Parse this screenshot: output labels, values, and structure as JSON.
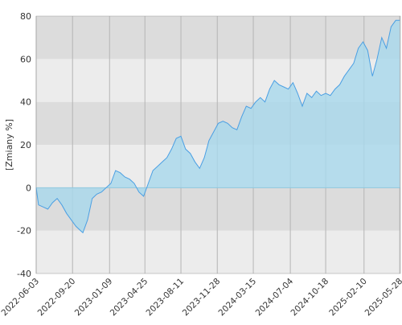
{
  "chart_data": {
    "type": "area",
    "ylabel": "[Zmiany %]",
    "x": [
      "2022-06-03",
      "2022-06-10",
      "2022-06-24",
      "2022-07-08",
      "2022-07-22",
      "2022-08-05",
      "2022-08-19",
      "2022-09-02",
      "2022-09-16",
      "2022-09-30",
      "2022-10-14",
      "2022-10-21",
      "2022-11-04",
      "2022-11-18",
      "2022-12-02",
      "2022-12-16",
      "2022-12-30",
      "2023-01-13",
      "2023-01-27",
      "2023-02-10",
      "2023-02-24",
      "2023-03-10",
      "2023-03-24",
      "2023-04-07",
      "2023-04-21",
      "2023-05-05",
      "2023-05-19",
      "2023-06-02",
      "2023-06-16",
      "2023-06-30",
      "2023-07-14",
      "2023-07-28",
      "2023-08-11",
      "2023-08-25",
      "2023-09-08",
      "2023-09-22",
      "2023-10-06",
      "2023-10-20",
      "2023-11-03",
      "2023-11-17",
      "2023-12-01",
      "2023-12-15",
      "2023-12-29",
      "2024-01-12",
      "2024-01-26",
      "2024-02-09",
      "2024-02-23",
      "2024-03-08",
      "2024-03-22",
      "2024-04-05",
      "2024-04-19",
      "2024-05-03",
      "2024-05-17",
      "2024-05-31",
      "2024-06-14",
      "2024-06-28",
      "2024-07-12",
      "2024-07-26",
      "2024-08-09",
      "2024-08-23",
      "2024-09-06",
      "2024-09-20",
      "2024-10-04",
      "2024-10-18",
      "2024-11-01",
      "2024-11-15",
      "2024-11-29",
      "2024-12-13",
      "2024-12-27",
      "2025-01-10",
      "2025-01-24",
      "2025-02-07",
      "2025-02-21",
      "2025-03-07",
      "2025-03-21",
      "2025-04-04",
      "2025-04-18",
      "2025-05-02",
      "2025-05-16",
      "2025-05-28"
    ],
    "series": [
      {
        "color": "#4a9fe3",
        "fill": "#a8d8ec",
        "values": [
          0,
          -8,
          -9,
          -10,
          -7,
          -5,
          -8,
          -12,
          -15,
          -18,
          -20,
          -21,
          -15,
          -5,
          -3,
          -2,
          0,
          2,
          8,
          7,
          5,
          4,
          2,
          -2,
          -4,
          2,
          8,
          10,
          12,
          14,
          18,
          23,
          24,
          18,
          16,
          12,
          9,
          14,
          22,
          26,
          30,
          31,
          30,
          28,
          27,
          33,
          38,
          37,
          40,
          42,
          40,
          46,
          50,
          48,
          47,
          46,
          49,
          44,
          38,
          44,
          42,
          45,
          43,
          44,
          43,
          46,
          48,
          52,
          55,
          58,
          65,
          68,
          64,
          52,
          60,
          70,
          65,
          75,
          78,
          78
        ]
      }
    ],
    "xlim": [
      "2022-06-03",
      "2025-05-30"
    ],
    "xticks": [
      "2022-06-03",
      "2022-09-20",
      "2023-01-09",
      "2023-04-25",
      "2023-08-11",
      "2023-11-28",
      "2024-03-15",
      "2024-07-04",
      "2024-10-18",
      "2025-02-10",
      "2025-05-28"
    ],
    "ylim": [
      -40,
      80
    ],
    "yticks": [
      -40,
      -20,
      0,
      20,
      40,
      60,
      80
    ],
    "bands": [
      "#ececec",
      "#dcdcdc"
    ],
    "grid": true
  }
}
